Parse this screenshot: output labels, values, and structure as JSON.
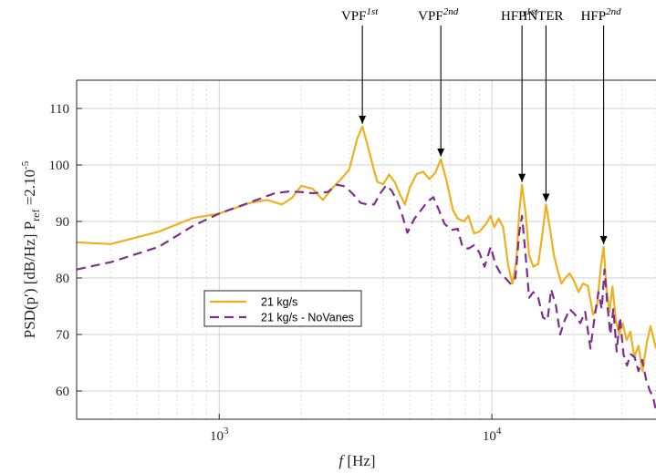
{
  "chart_data": {
    "type": "line",
    "xscale": "log",
    "xlim": [
      300,
      40000
    ],
    "ylim": [
      55,
      115
    ],
    "xlabel_var": "f",
    "xlabel_unit": " [Hz]",
    "ylabel": "PSD(p′) [dB/Hz] P",
    "ylabel_sub": "ref",
    "ylabel_tail": " =2.10",
    "ylabel_sup": "-5",
    "y_ticks": [
      60,
      70,
      80,
      90,
      100,
      110
    ],
    "x_ticks": [
      {
        "value": 1000,
        "base": "10",
        "exp": "3"
      },
      {
        "value": 10000,
        "base": "10",
        "exp": "4"
      }
    ],
    "grid": true,
    "legend_position": "center-left",
    "series": [
      {
        "name": "21 kg/s",
        "color": "#EDB120",
        "dash": "solid",
        "points": [
          [
            300,
            86.3
          ],
          [
            400,
            86.0
          ],
          [
            600,
            88.2
          ],
          [
            800,
            90.6
          ],
          [
            1000,
            91.4
          ],
          [
            1300,
            93.3
          ],
          [
            1500,
            93.8
          ],
          [
            1700,
            93.0
          ],
          [
            1850,
            94.2
          ],
          [
            2000,
            96.3
          ],
          [
            2200,
            95.8
          ],
          [
            2400,
            93.8
          ],
          [
            2600,
            95.9
          ],
          [
            2800,
            97.5
          ],
          [
            3000,
            99.2
          ],
          [
            3200,
            104.5
          ],
          [
            3350,
            106.8
          ],
          [
            3500,
            103.5
          ],
          [
            3700,
            99.0
          ],
          [
            3800,
            97.0
          ],
          [
            4000,
            96.6
          ],
          [
            4200,
            98.3
          ],
          [
            4400,
            97.0
          ],
          [
            4600,
            94.8
          ],
          [
            4800,
            93.0
          ],
          [
            5000,
            96.0
          ],
          [
            5300,
            98.4
          ],
          [
            5600,
            98.8
          ],
          [
            5900,
            97.5
          ],
          [
            6200,
            98.6
          ],
          [
            6500,
            101.0
          ],
          [
            6800,
            97.5
          ],
          [
            7200,
            92.0
          ],
          [
            7500,
            90.5
          ],
          [
            7900,
            90.0
          ],
          [
            8200,
            91.0
          ],
          [
            8600,
            87.9
          ],
          [
            9000,
            88.2
          ],
          [
            9500,
            89.5
          ],
          [
            9900,
            91.0
          ],
          [
            10200,
            89.0
          ],
          [
            10600,
            90.5
          ],
          [
            11000,
            89.0
          ],
          [
            11500,
            82.0
          ],
          [
            11900,
            79.0
          ],
          [
            12300,
            83.0
          ],
          [
            12600,
            91.5
          ],
          [
            12900,
            96.5
          ],
          [
            13300,
            91.5
          ],
          [
            13700,
            84.0
          ],
          [
            14200,
            82.0
          ],
          [
            14800,
            82.5
          ],
          [
            15300,
            87.5
          ],
          [
            15800,
            93.0
          ],
          [
            16300,
            89.0
          ],
          [
            16900,
            84.0
          ],
          [
            17400,
            81.5
          ],
          [
            18000,
            79.0
          ],
          [
            18600,
            80.0
          ],
          [
            19300,
            80.8
          ],
          [
            20000,
            79.5
          ],
          [
            20800,
            77.5
          ],
          [
            21600,
            79.0
          ],
          [
            22500,
            78.6
          ],
          [
            23500,
            73.5
          ],
          [
            24300,
            75.0
          ],
          [
            25100,
            82.0
          ],
          [
            25700,
            85.5
          ],
          [
            26300,
            78.5
          ],
          [
            27000,
            74.0
          ],
          [
            27700,
            78.5
          ],
          [
            28500,
            72.5
          ],
          [
            29300,
            70.0
          ],
          [
            30200,
            72.0
          ],
          [
            31200,
            69.0
          ],
          [
            32200,
            70.5
          ],
          [
            33300,
            66.0
          ],
          [
            34500,
            68.0
          ],
          [
            35700,
            63.5
          ],
          [
            37000,
            68.5
          ],
          [
            38200,
            71.5
          ],
          [
            40000,
            67.5
          ]
        ]
      },
      {
        "name": "21 kg/s - NoVanes",
        "color": "#7E2F8E",
        "dash": "dashed",
        "points": [
          [
            300,
            81.5
          ],
          [
            400,
            82.8
          ],
          [
            600,
            85.5
          ],
          [
            800,
            89.2
          ],
          [
            1000,
            91.4
          ],
          [
            1300,
            93.4
          ],
          [
            1600,
            95.0
          ],
          [
            1800,
            95.3
          ],
          [
            2000,
            95.2
          ],
          [
            2200,
            95.0
          ],
          [
            2500,
            95.2
          ],
          [
            2700,
            96.5
          ],
          [
            2900,
            96.2
          ],
          [
            3100,
            94.8
          ],
          [
            3300,
            93.3
          ],
          [
            3500,
            93.0
          ],
          [
            3700,
            93.0
          ],
          [
            3900,
            95.0
          ],
          [
            4100,
            96.4
          ],
          [
            4300,
            95.4
          ],
          [
            4500,
            93.5
          ],
          [
            4700,
            91.0
          ],
          [
            4900,
            88.0
          ],
          [
            5200,
            90.5
          ],
          [
            5500,
            92.0
          ],
          [
            5800,
            93.5
          ],
          [
            6100,
            94.3
          ],
          [
            6400,
            92.0
          ],
          [
            6700,
            89.6
          ],
          [
            7100,
            88.5
          ],
          [
            7500,
            88.7
          ],
          [
            7800,
            85.5
          ],
          [
            8200,
            85.2
          ],
          [
            8600,
            85.8
          ],
          [
            9000,
            84.5
          ],
          [
            9400,
            82.0
          ],
          [
            9900,
            85.5
          ],
          [
            10300,
            82.5
          ],
          [
            10700,
            81.0
          ],
          [
            11200,
            80.0
          ],
          [
            11700,
            79.0
          ],
          [
            12200,
            80.0
          ],
          [
            12600,
            88.0
          ],
          [
            12900,
            91.0
          ],
          [
            13300,
            84.0
          ],
          [
            13700,
            76.5
          ],
          [
            14200,
            77.5
          ],
          [
            14800,
            76.5
          ],
          [
            15400,
            73.0
          ],
          [
            16000,
            72.5
          ],
          [
            16500,
            78.0
          ],
          [
            17200,
            75.0
          ],
          [
            17800,
            70.0
          ],
          [
            18500,
            72.5
          ],
          [
            19300,
            74.5
          ],
          [
            20200,
            73.5
          ],
          [
            21100,
            72.0
          ],
          [
            22000,
            74.0
          ],
          [
            23000,
            67.5
          ],
          [
            23800,
            73.0
          ],
          [
            24600,
            77.5
          ],
          [
            25300,
            74.5
          ],
          [
            25900,
            81.5
          ],
          [
            26500,
            75.5
          ],
          [
            27200,
            70.0
          ],
          [
            27900,
            74.5
          ],
          [
            28700,
            67.0
          ],
          [
            29500,
            73.0
          ],
          [
            30400,
            66.5
          ],
          [
            31300,
            64.5
          ],
          [
            32300,
            66.5
          ],
          [
            33400,
            66.0
          ],
          [
            34500,
            63.5
          ],
          [
            35600,
            65.5
          ],
          [
            36800,
            62.0
          ],
          [
            38000,
            60.0
          ],
          [
            39000,
            59.0
          ],
          [
            40000,
            56.5
          ]
        ]
      }
    ],
    "annotations": [
      {
        "base": "VPF",
        "sup": "1st",
        "sup_italic": true,
        "x": 3350,
        "y": 106.8
      },
      {
        "base": "VPF",
        "sup": "2nd",
        "sup_italic": true,
        "x": 6500,
        "y": 101.0
      },
      {
        "base": "HFP",
        "sup": "1st",
        "sup_italic": true,
        "x": 12900,
        "y": 96.5
      },
      {
        "base": "INTER",
        "sup": "",
        "sup_italic": false,
        "x": 15800,
        "y": 93.0
      },
      {
        "base": "HFP",
        "sup": "2nd",
        "sup_italic": true,
        "x": 25700,
        "y": 85.5
      }
    ]
  }
}
